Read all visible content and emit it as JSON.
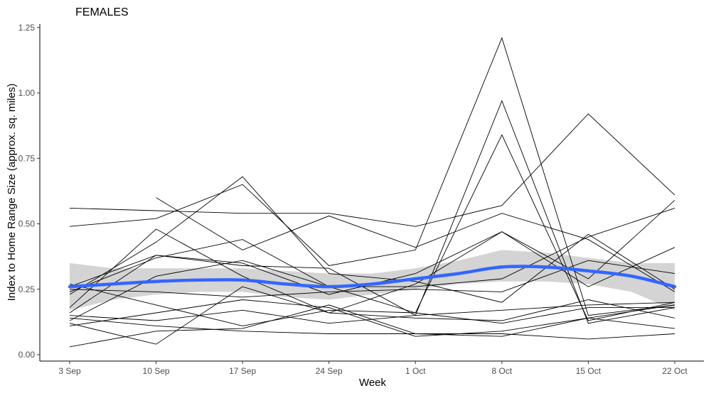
{
  "chart_data": {
    "type": "line",
    "title": "FEMALES",
    "xlabel": "Week",
    "ylabel": "Index to Home Range Size (approx. sq. miles)",
    "categories": [
      "3 Sep",
      "10 Sep",
      "17 Sep",
      "24 Sep",
      "1 Oct",
      "8 Oct",
      "15 Oct",
      "22 Oct"
    ],
    "ylim": [
      -0.02,
      1.27
    ],
    "yticks": [
      0.0,
      0.25,
      0.5,
      0.75,
      1.0,
      1.25
    ],
    "ytick_labels": [
      "0.00",
      "0.25",
      "0.50",
      "0.75",
      "1.00",
      "1.25"
    ],
    "grid": false,
    "colors": {
      "individual": "#000000",
      "trend": "#3366ff",
      "confidence_band": "#cccccc"
    },
    "series": [
      {
        "values": [
          0.56,
          0.55,
          0.54,
          0.54,
          0.49,
          0.57,
          0.92,
          0.61
        ]
      },
      {
        "values": [
          0.49,
          0.52,
          0.65,
          0.34,
          0.4,
          1.21,
          0.15,
          0.19
        ]
      },
      {
        "values": [
          0.26,
          0.38,
          0.34,
          0.33,
          0.15,
          0.97,
          0.12,
          0.18
        ]
      },
      {
        "values": [
          0.24,
          0.37,
          0.44,
          0.26,
          0.16,
          0.84,
          0.13,
          0.2
        ]
      },
      {
        "values": [
          null,
          0.6,
          0.4,
          0.53,
          0.41,
          0.54,
          0.44,
          0.24
        ]
      },
      {
        "values": [
          0.23,
          0.43,
          0.68,
          0.31,
          0.28,
          0.2,
          0.46,
          0.25
        ]
      },
      {
        "values": [
          0.18,
          0.48,
          0.3,
          0.16,
          0.27,
          0.47,
          0.26,
          0.41
        ]
      },
      {
        "values": [
          0.16,
          0.38,
          0.35,
          0.23,
          0.31,
          0.47,
          0.29,
          0.59
        ]
      },
      {
        "values": [
          0.13,
          0.3,
          0.36,
          0.26,
          0.26,
          0.29,
          0.45,
          0.56
        ]
      },
      {
        "values": [
          0.25,
          0.24,
          0.22,
          0.24,
          0.25,
          0.24,
          0.36,
          0.31
        ]
      },
      {
        "values": [
          0.27,
          0.19,
          0.11,
          0.17,
          0.16,
          0.12,
          0.18,
          0.18
        ]
      },
      {
        "values": [
          0.15,
          0.13,
          0.17,
          0.12,
          0.15,
          0.17,
          0.19,
          0.2
        ]
      },
      {
        "values": [
          0.12,
          0.04,
          0.26,
          0.16,
          0.14,
          0.13,
          0.21,
          0.14
        ]
      },
      {
        "values": [
          0.03,
          0.09,
          0.1,
          0.19,
          0.08,
          0.07,
          0.14,
          0.1
        ]
      },
      {
        "values": [
          0.14,
          0.11,
          0.09,
          0.08,
          0.08,
          0.08,
          0.06,
          0.08
        ]
      },
      {
        "values": [
          0.11,
          0.16,
          0.21,
          0.18,
          0.07,
          0.09,
          0.14,
          0.19
        ]
      }
    ],
    "trend": {
      "x": [
        0,
        0.5,
        1,
        1.5,
        2,
        2.5,
        3,
        3.5,
        4,
        4.5,
        5,
        5.5,
        6,
        6.5,
        7
      ],
      "y": [
        0.26,
        0.27,
        0.28,
        0.285,
        0.285,
        0.27,
        0.26,
        0.27,
        0.29,
        0.31,
        0.335,
        0.335,
        0.32,
        0.3,
        0.26
      ],
      "lower": [
        0.17,
        0.21,
        0.23,
        0.24,
        0.24,
        0.22,
        0.21,
        0.23,
        0.25,
        0.27,
        0.28,
        0.28,
        0.27,
        0.24,
        0.17
      ],
      "upper": [
        0.35,
        0.33,
        0.33,
        0.33,
        0.33,
        0.32,
        0.31,
        0.31,
        0.33,
        0.36,
        0.4,
        0.39,
        0.37,
        0.35,
        0.35
      ]
    }
  }
}
